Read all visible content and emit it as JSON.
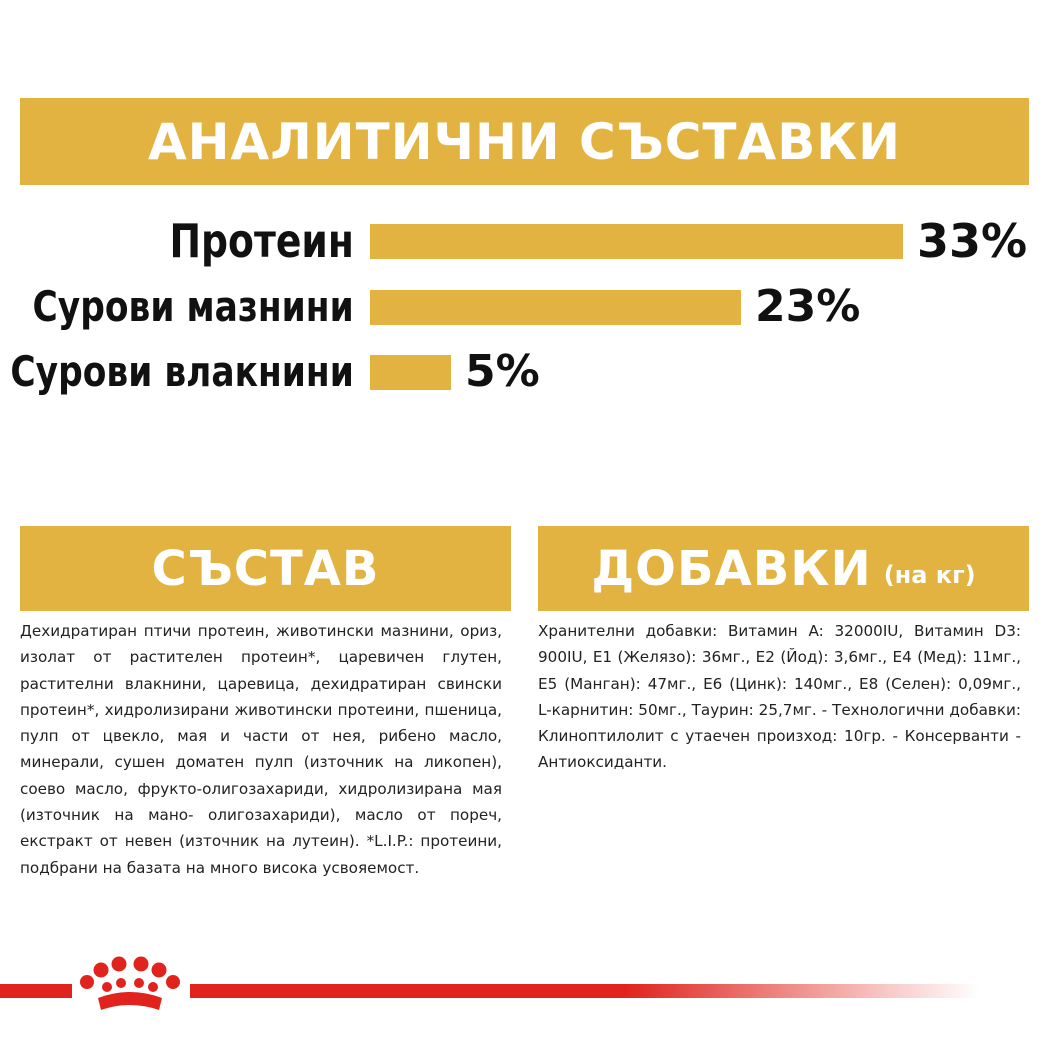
{
  "analytic": {
    "title": "АНАЛИТИЧНИ СЪСТАВКИ"
  },
  "chart_data": {
    "type": "bar",
    "orientation": "horizontal",
    "categories": [
      "Протеин",
      "Сурови мазнини",
      "Сурови влакнини"
    ],
    "values": [
      33,
      23,
      5
    ],
    "value_labels": [
      "33%",
      "23%",
      "5%"
    ],
    "unit": "%",
    "xlim": [
      0,
      33
    ],
    "color": "#e2b340",
    "grid": false
  },
  "composition": {
    "title": "СЪСТАВ",
    "text": "Дехидратиран птичи протеин, животински мазнини, ориз, изолат от растителен протеин*, царевичен глутен, растителни влакнини, царевица, дехидратиран свински протеин*, хидролизирани животински протеини, пшеница, пулп от цвекло, мая и части от нея, рибено масло, минерали, сушен доматен пулп (източник на ликопен), соево масло, фрукто-олигозахариди, хидролизирана мая (източник на мано- олигозахариди), масло от пореч, екстракт от невен (източник на лутеин). *L.I.P.: протеини, подбрани на базата на много висока усвояемост."
  },
  "additives": {
    "title": "ДОБАВКИ",
    "title_suffix": "(на кг)",
    "text": "Хранителни добавки: Витамин A: 32000IU, Витамин D3: 900IU, E1 (Желязо): 36мг., E2 (Йод): 3,6мг., E4 (Мед): 11мг., E5 (Манган): 47мг., E6 (Цинк): 140мг., E8 (Селен): 0,09мг., L-карнитин: 50мг., Таурин: 25,7мг. - Технологични добавки: Клиноптилолит с утаечен произход: 10гр. - Консерванти - Антиоксиданти."
  },
  "colors": {
    "accent": "#e2b340",
    "brand_red": "#e0231c",
    "text": "#111111"
  },
  "footer": {
    "logo_icon": "royal-canin-crown-icon"
  }
}
